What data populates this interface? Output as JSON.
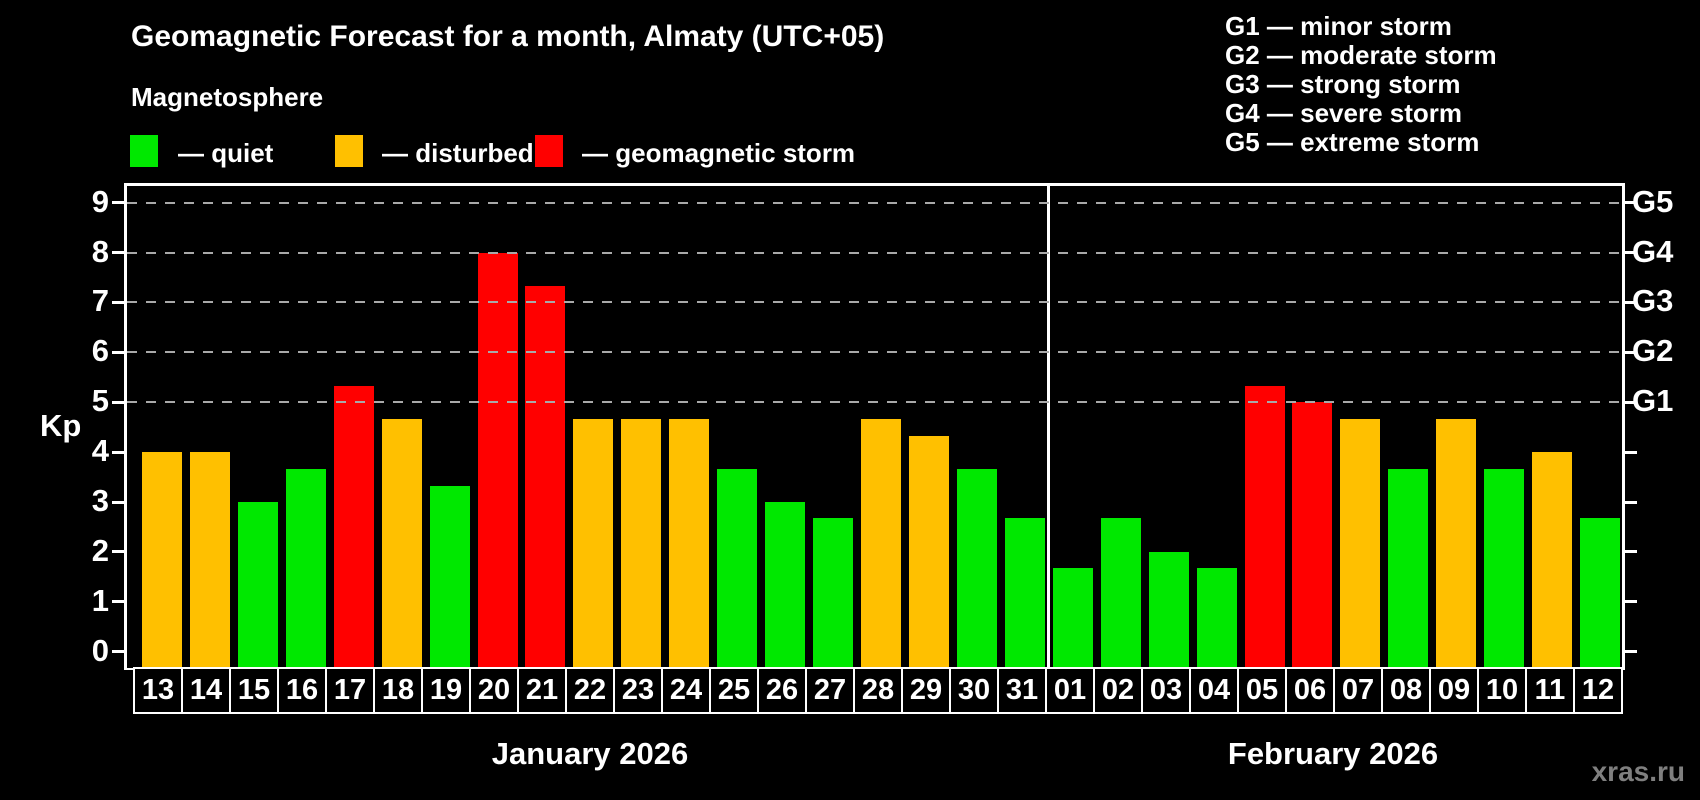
{
  "title": "Geomagnetic Forecast for a month, Almaty (UTC+05)",
  "subtitle": "Magnetosphere",
  "legend": {
    "quiet_label": "— quiet",
    "disturbed_label": "— disturbed",
    "storm_label": "— geomagnetic storm"
  },
  "g_legend": {
    "lines": [
      "G1 — minor storm",
      "G2 — moderate storm",
      "G3 — strong storm",
      "G4 — severe storm",
      "G5 — extreme storm"
    ]
  },
  "months": [
    {
      "label": "January 2026"
    },
    {
      "label": "February 2026"
    }
  ],
  "watermark": "xras.ru",
  "colors": {
    "quiet": "#00e800",
    "disturbed": "#ffc000",
    "storm": "#ff0000",
    "grid": "#a9a9a9",
    "axis": "#ffffff",
    "background": "#000000",
    "watermark": "#7f7f7f"
  },
  "chart_data": {
    "type": "bar",
    "title": "Geomagnetic Forecast for a month, Almaty (UTC+05)",
    "xlabel": "",
    "ylabel": "Kp",
    "ylim": [
      0,
      9
    ],
    "yticks": [
      0,
      1,
      2,
      3,
      4,
      5,
      6,
      7,
      8,
      9
    ],
    "grid_levels": [
      5,
      6,
      7,
      8,
      9
    ],
    "grid_style": "dashed",
    "legend_position": "top",
    "right_axis": [
      {
        "kp": 5,
        "label": "G1"
      },
      {
        "kp": 6,
        "label": "G2"
      },
      {
        "kp": 7,
        "label": "G3"
      },
      {
        "kp": 8,
        "label": "G4"
      },
      {
        "kp": 9,
        "label": "G5"
      }
    ],
    "bars": [
      {
        "month": "January 2026",
        "day": "13",
        "kp": 4.0,
        "state": "disturbed"
      },
      {
        "month": "January 2026",
        "day": "14",
        "kp": 4.0,
        "state": "disturbed"
      },
      {
        "month": "January 2026",
        "day": "15",
        "kp": 3.0,
        "state": "quiet"
      },
      {
        "month": "January 2026",
        "day": "16",
        "kp": 3.67,
        "state": "quiet"
      },
      {
        "month": "January 2026",
        "day": "17",
        "kp": 5.33,
        "state": "storm"
      },
      {
        "month": "January 2026",
        "day": "18",
        "kp": 4.67,
        "state": "disturbed"
      },
      {
        "month": "January 2026",
        "day": "19",
        "kp": 3.33,
        "state": "quiet"
      },
      {
        "month": "January 2026",
        "day": "20",
        "kp": 8.0,
        "state": "storm"
      },
      {
        "month": "January 2026",
        "day": "21",
        "kp": 7.33,
        "state": "storm"
      },
      {
        "month": "January 2026",
        "day": "22",
        "kp": 4.67,
        "state": "disturbed"
      },
      {
        "month": "January 2026",
        "day": "23",
        "kp": 4.67,
        "state": "disturbed"
      },
      {
        "month": "January 2026",
        "day": "24",
        "kp": 4.67,
        "state": "disturbed"
      },
      {
        "month": "January 2026",
        "day": "25",
        "kp": 3.67,
        "state": "quiet"
      },
      {
        "month": "January 2026",
        "day": "26",
        "kp": 3.0,
        "state": "quiet"
      },
      {
        "month": "January 2026",
        "day": "27",
        "kp": 2.67,
        "state": "quiet"
      },
      {
        "month": "January 2026",
        "day": "28",
        "kp": 4.67,
        "state": "disturbed"
      },
      {
        "month": "January 2026",
        "day": "29",
        "kp": 4.33,
        "state": "disturbed"
      },
      {
        "month": "January 2026",
        "day": "30",
        "kp": 3.67,
        "state": "quiet"
      },
      {
        "month": "January 2026",
        "day": "31",
        "kp": 2.67,
        "state": "quiet"
      },
      {
        "month": "February 2026",
        "day": "01",
        "kp": 1.67,
        "state": "quiet"
      },
      {
        "month": "February 2026",
        "day": "02",
        "kp": 2.67,
        "state": "quiet"
      },
      {
        "month": "February 2026",
        "day": "03",
        "kp": 2.0,
        "state": "quiet"
      },
      {
        "month": "February 2026",
        "day": "04",
        "kp": 1.67,
        "state": "quiet"
      },
      {
        "month": "February 2026",
        "day": "05",
        "kp": 5.33,
        "state": "storm"
      },
      {
        "month": "February 2026",
        "day": "06",
        "kp": 5.0,
        "state": "storm"
      },
      {
        "month": "February 2026",
        "day": "07",
        "kp": 4.67,
        "state": "disturbed"
      },
      {
        "month": "February 2026",
        "day": "08",
        "kp": 3.67,
        "state": "quiet"
      },
      {
        "month": "February 2026",
        "day": "09",
        "kp": 4.67,
        "state": "disturbed"
      },
      {
        "month": "February 2026",
        "day": "10",
        "kp": 3.67,
        "state": "quiet"
      },
      {
        "month": "February 2026",
        "day": "11",
        "kp": 4.0,
        "state": "disturbed"
      },
      {
        "month": "February 2026",
        "day": "12",
        "kp": 2.67,
        "state": "quiet"
      }
    ]
  }
}
